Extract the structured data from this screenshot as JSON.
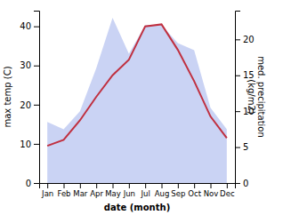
{
  "chart_data": {
    "type": "line",
    "categories": [
      "Jan",
      "Feb",
      "Mar",
      "Apr",
      "May",
      "Jun",
      "Jul",
      "Aug",
      "Sep",
      "Oct",
      "Nov",
      "Dec"
    ],
    "series": [
      {
        "type": "area",
        "axis": "y2",
        "color": "#b8c4f0",
        "values": [
          8.5,
          7.5,
          10.0,
          16.0,
          23.0,
          18.0,
          22.0,
          22.0,
          19.5,
          18.5,
          10.5,
          7.5
        ]
      },
      {
        "type": "line",
        "axis": "y",
        "color": "#c03040",
        "values": [
          9.5,
          11.0,
          16.0,
          22.0,
          27.5,
          31.5,
          40.0,
          40.5,
          34.0,
          26.0,
          17.0,
          11.5
        ]
      }
    ],
    "xlabel": "date (month)",
    "ylabel": "max temp (C)",
    "y2label": "med. precipitation\n(kg/m2)",
    "ylim": [
      0,
      44
    ],
    "yticks": [
      0,
      10,
      20,
      30,
      40
    ],
    "y2lim": [
      0,
      24
    ],
    "y2ticks": [
      0,
      5,
      10,
      15,
      20
    ],
    "grid": false
  }
}
